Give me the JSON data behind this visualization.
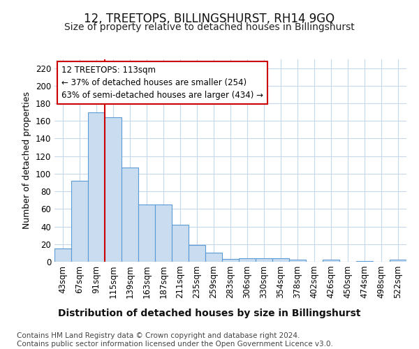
{
  "title": "12, TREETOPS, BILLINGSHURST, RH14 9GQ",
  "subtitle": "Size of property relative to detached houses in Billingshurst",
  "xlabel": "Distribution of detached houses by size in Billingshurst",
  "ylabel": "Number of detached properties",
  "bar_labels": [
    "43sqm",
    "67sqm",
    "91sqm",
    "115sqm",
    "139sqm",
    "163sqm",
    "187sqm",
    "211sqm",
    "235sqm",
    "259sqm",
    "283sqm",
    "306sqm",
    "330sqm",
    "354sqm",
    "378sqm",
    "402sqm",
    "426sqm",
    "450sqm",
    "474sqm",
    "498sqm",
    "522sqm"
  ],
  "bar_values": [
    15,
    92,
    170,
    164,
    107,
    65,
    65,
    42,
    19,
    10,
    3,
    4,
    4,
    4,
    2,
    0,
    2,
    0,
    1,
    0,
    2
  ],
  "bar_color": "#c9dcf0",
  "bar_edge_color": "#5b9bd5",
  "ylim": [
    0,
    230
  ],
  "yticks": [
    0,
    20,
    40,
    60,
    80,
    100,
    120,
    140,
    160,
    180,
    200,
    220
  ],
  "marker_color": "#cc0000",
  "annotation_text": "12 TREETOPS: 113sqm\n← 37% of detached houses are smaller (254)\n63% of semi-detached houses are larger (434) →",
  "annotation_box_color": "#ffffff",
  "annotation_box_edge": "#cc0000",
  "grid_color": "#c8d8ec",
  "bg_color": "#ffffff",
  "footer": "Contains HM Land Registry data © Crown copyright and database right 2024.\nContains public sector information licensed under the Open Government Licence v3.0.",
  "title_fontsize": 12,
  "subtitle_fontsize": 10,
  "xlabel_fontsize": 10,
  "ylabel_fontsize": 9,
  "tick_fontsize": 8.5,
  "footer_fontsize": 7.5
}
